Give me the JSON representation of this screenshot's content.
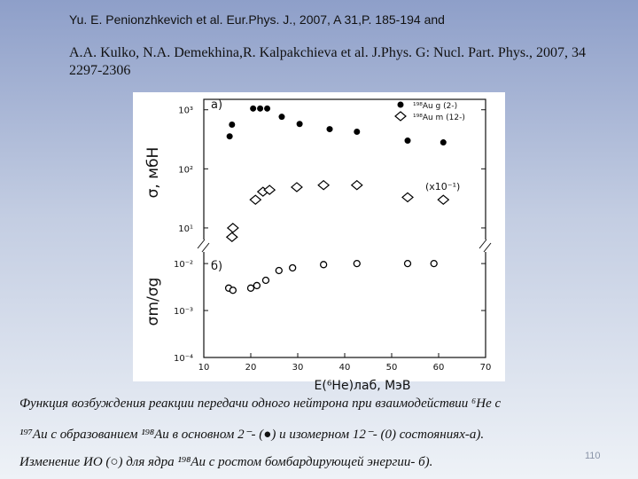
{
  "slide": {
    "references": [
      "Yu. E. Penionzhkevich et al. Eur.Phys. J., 2007, A 31,P. 185-194 and",
      "A.A. Kulko, N.A. Demekhina,R. Kalpakchieva et al. J.Phys. G: Nucl. Part. Phys., 2007, 34 2297-2306"
    ],
    "caption": [
      "Функция возбуждения реакции передачи одного нейтрона при взаимодействии ⁶He с",
      "¹⁹⁷Au с образованием ¹⁹⁸Au в основном 2⁻- (●) и изомерном 12⁻- (0) состояниях-а).",
      "Изменение ИО (○) для ядра ¹⁹⁸Au с ростом бомбардирующей энергии- б)."
    ],
    "page_number": "110"
  },
  "chart_data": [
    {
      "type": "scatter",
      "panel_label": "a)",
      "ylabel": "σ, мбН",
      "annotation": "(x10⁻¹)",
      "log_y": true,
      "legend": "upper right",
      "xlim": [
        10,
        70
      ],
      "ylim": [
        5,
        1500
      ],
      "yticks": [
        {
          "value": 1000,
          "label": "10³"
        },
        {
          "value": 100,
          "label": "10²"
        },
        {
          "value": 10,
          "label": "10¹"
        }
      ],
      "series": [
        {
          "name": "¹⁹⁸Au g (2-)",
          "marker": "filled-circle",
          "color": "#000000",
          "x": [
            15.5,
            16,
            20.5,
            22,
            23.5,
            26.6,
            30.4,
            36.8,
            42.6,
            53.4,
            61
          ],
          "values": [
            355,
            560,
            1050,
            1050,
            1050,
            760,
            575,
            470,
            425,
            300,
            280
          ]
        },
        {
          "name": "¹⁹⁸Au m (12-)",
          "marker": "open-diamond",
          "color": "#000000",
          "x": [
            16,
            16.2,
            21,
            22.6,
            24,
            29.8,
            35.5,
            42.6,
            53.4,
            61
          ],
          "values": [
            7,
            10,
            30,
            41,
            44,
            49,
            53,
            53,
            33,
            30
          ]
        }
      ]
    },
    {
      "type": "scatter",
      "panel_label": "б)",
      "ylabel": "σm/σg",
      "xlabel": "E(⁶He)лаб, МэВ",
      "log_y": true,
      "xlim": [
        10,
        70
      ],
      "ylim": [
        0.0001,
        0.024
      ],
      "xticks": [
        10,
        20,
        30,
        40,
        50,
        60,
        70
      ],
      "yticks": [
        {
          "value": 0.01,
          "label": "10⁻²"
        },
        {
          "value": 0.001,
          "label": "10⁻³"
        },
        {
          "value": 0.0001,
          "label": "10⁻⁴"
        }
      ],
      "series": [
        {
          "marker": "open-circle",
          "color": "#000000",
          "x": [
            15.3,
            16.2,
            20,
            21.3,
            23.2,
            26,
            28.9,
            35.5,
            42.6,
            53.4,
            59
          ],
          "values": [
            0.003,
            0.0027,
            0.003,
            0.0034,
            0.0044,
            0.0071,
            0.0081,
            0.0095,
            0.01,
            0.01,
            0.01
          ]
        }
      ]
    }
  ]
}
